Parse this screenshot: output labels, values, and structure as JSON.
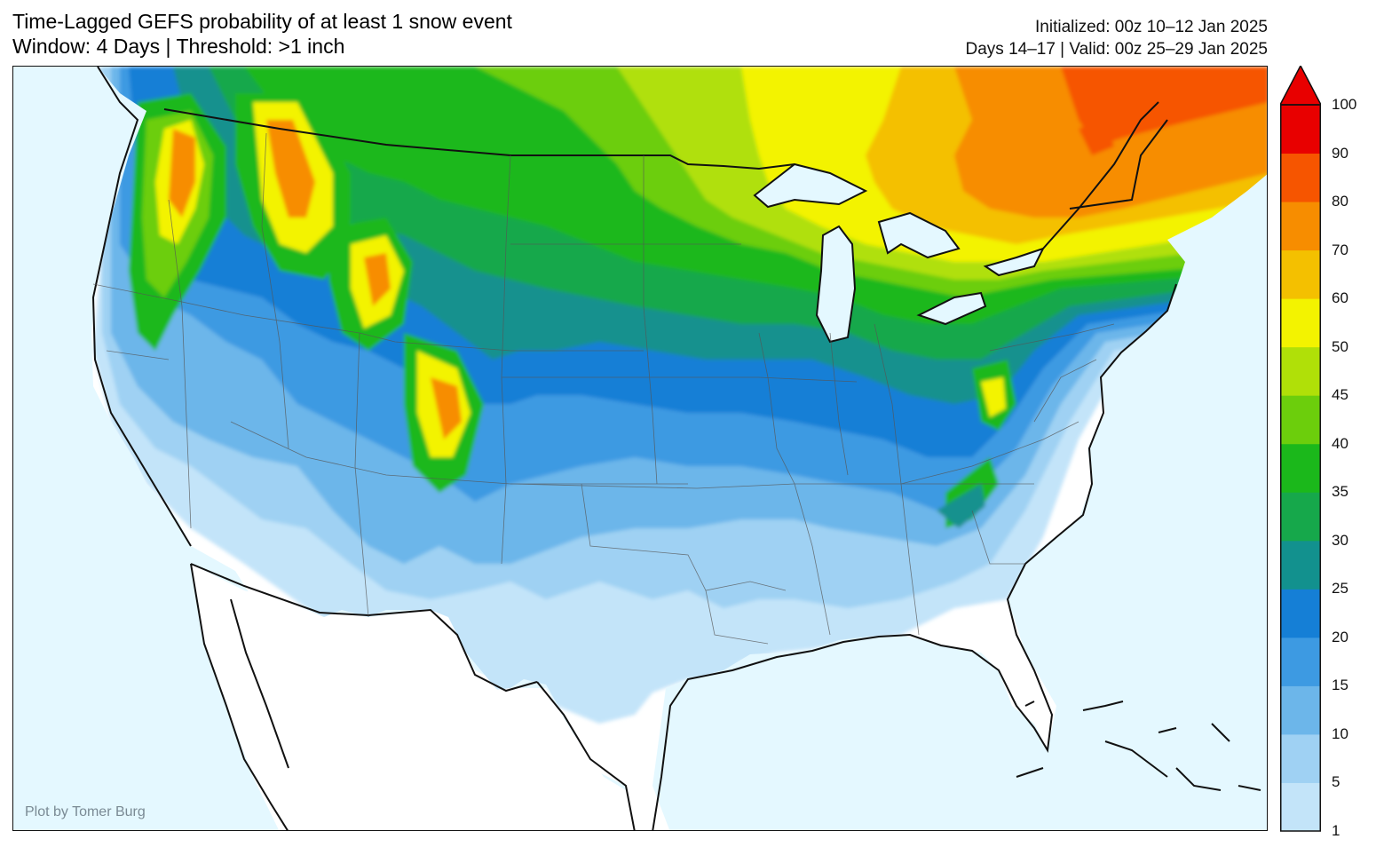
{
  "title": {
    "line1": "Time-Lagged GEFS probability of at least 1 snow event",
    "line2": "Window: 4 Days | Threshold: >1 inch"
  },
  "info": {
    "initialized": "Initialized: 00z 10–12 Jan 2025",
    "valid": "Days 14–17 | Valid: 00z 25–29 Jan 2025"
  },
  "credit": "Plot by Tomer Burg",
  "colorbar": {
    "labels": [
      "1",
      "5",
      "10",
      "15",
      "20",
      "25",
      "30",
      "35",
      "40",
      "45",
      "50",
      "60",
      "70",
      "80",
      "90",
      "100"
    ],
    "colors": [
      "#c3e4f9",
      "#9fd1f3",
      "#6cb6ea",
      "#3d9ae2",
      "#157fd6",
      "#12918e",
      "#16a84b",
      "#1bb81b",
      "#6cce0c",
      "#b0e008",
      "#f3f300",
      "#f4c000",
      "#f78d00",
      "#f65500",
      "#e80000"
    ],
    "extend": "max"
  },
  "map": {
    "ocean_color": "#e4f8ff",
    "land_color": "#ffffff"
  }
}
